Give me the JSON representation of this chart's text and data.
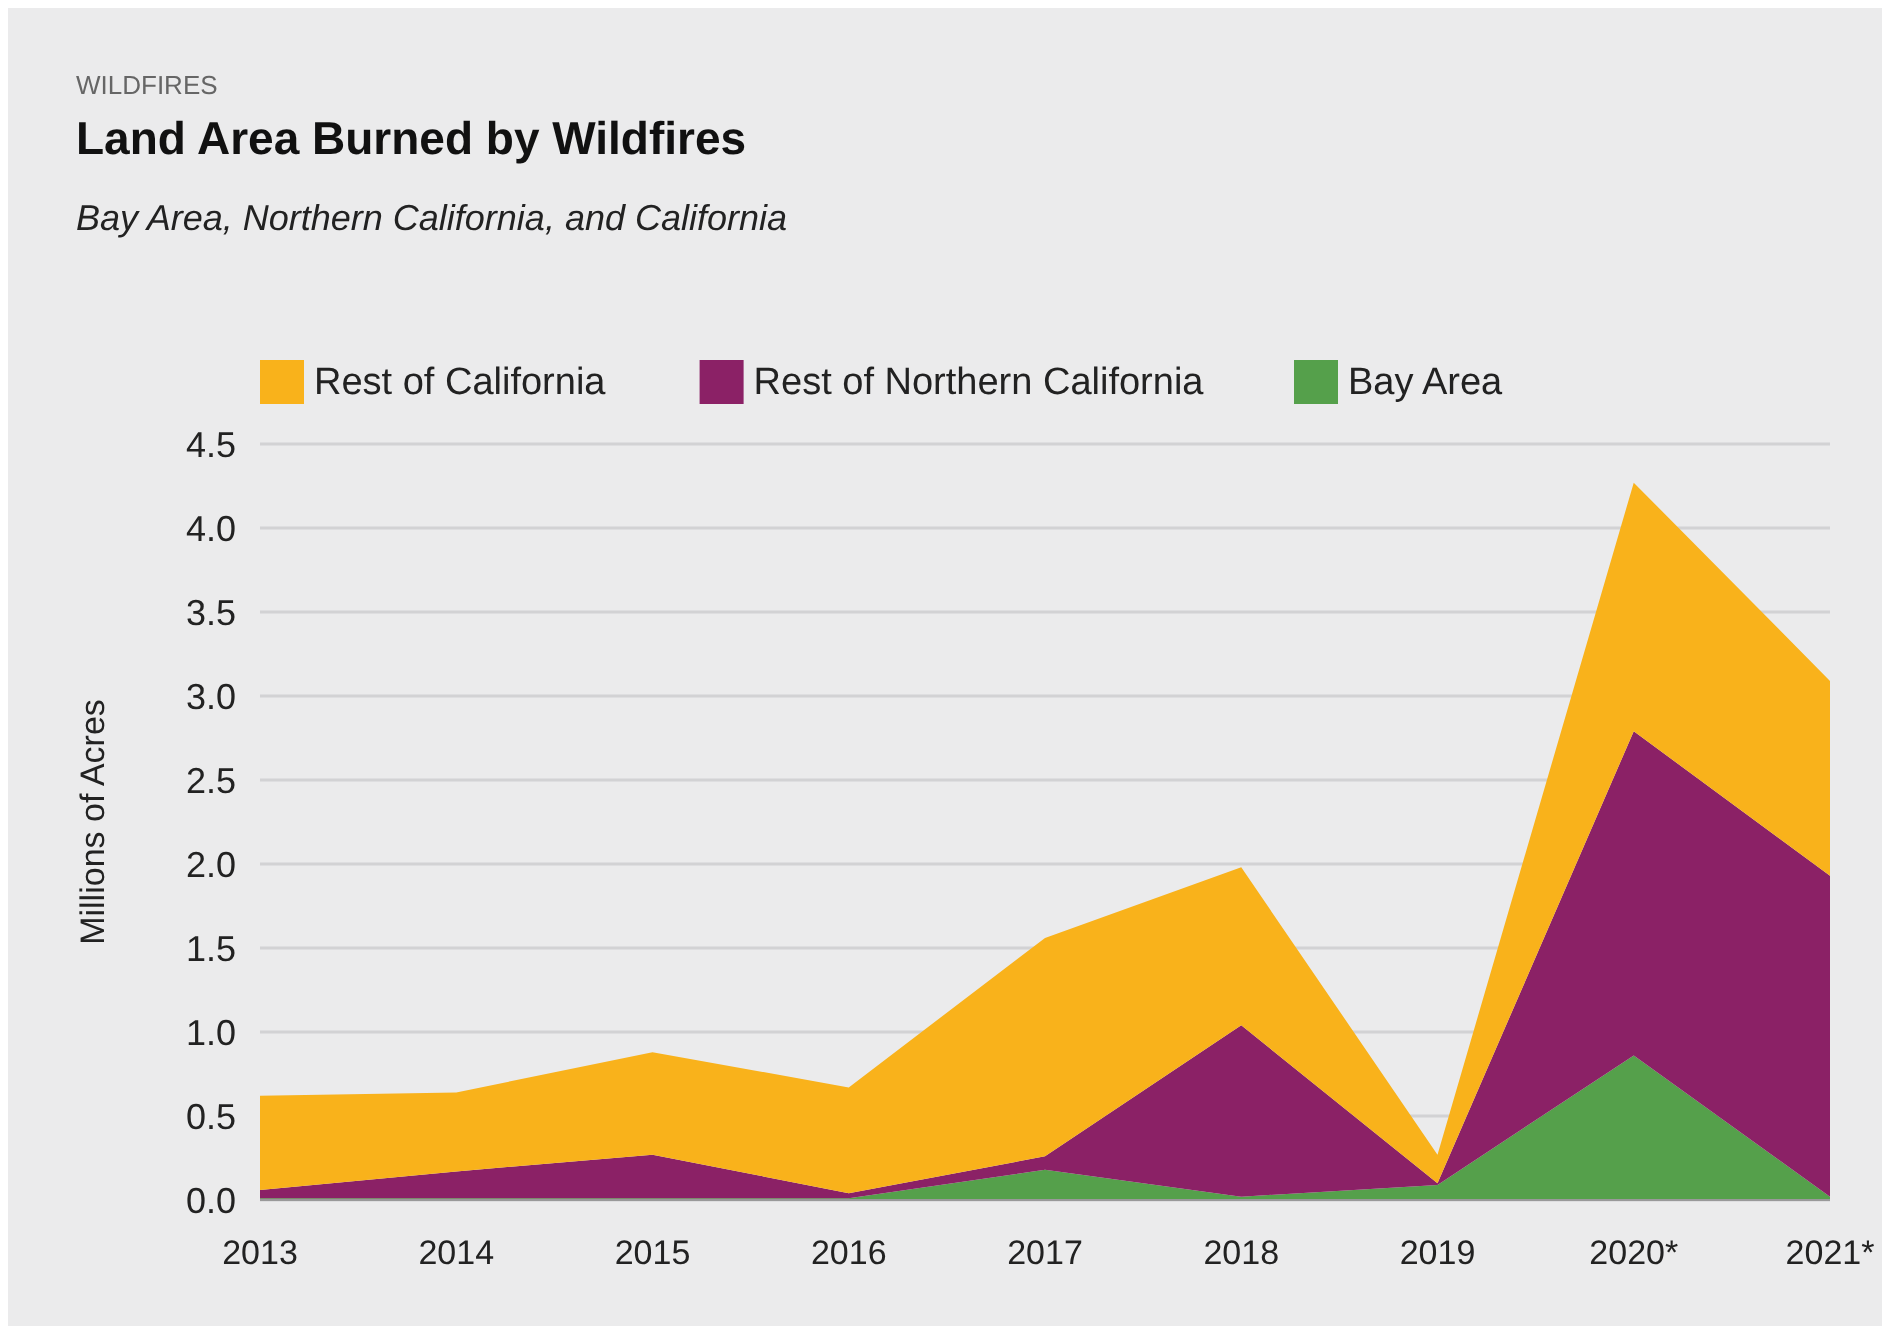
{
  "chart_data": {
    "type": "area",
    "title": "Land Area Burned by Wildfires",
    "subtitle": "Bay Area, Northern California, and California",
    "annotations": [
      "WILDFIRES"
    ],
    "ylabel": "Millions of Acres",
    "categories": [
      "2013",
      "2014",
      "2015",
      "2016",
      "2017",
      "2018",
      "2019",
      "2020*",
      "2021*"
    ],
    "stacked": true,
    "series": [
      {
        "name": "Bay Area",
        "color": "#55a04b",
        "values": [
          0.01,
          0.01,
          0.01,
          0.01,
          0.18,
          0.02,
          0.09,
          0.86,
          0.02
        ]
      },
      {
        "name": "Rest of Northern California",
        "color": "#8b2166",
        "values": [
          0.05,
          0.16,
          0.26,
          0.03,
          0.08,
          1.02,
          0.01,
          1.93,
          1.91
        ]
      },
      {
        "name": "Rest of California",
        "color": "#f9b21b",
        "values": [
          0.56,
          0.47,
          0.61,
          0.63,
          1.3,
          0.94,
          0.17,
          1.48,
          1.16
        ]
      }
    ],
    "ylim": [
      0,
      4.5
    ],
    "yticks": [
      {
        "value": 0,
        "label": "0.0"
      },
      {
        "value": 0.5,
        "label": "0.5"
      },
      {
        "value": 1,
        "label": "1.0"
      },
      {
        "value": 1.5,
        "label": "1.5"
      },
      {
        "value": 2,
        "label": "2.0"
      },
      {
        "value": 2.5,
        "label": "2.5"
      },
      {
        "value": 3,
        "label": "3.0"
      },
      {
        "value": 3.5,
        "label": "3.5"
      },
      {
        "value": 4,
        "label": "4.0"
      },
      {
        "value": 4.5,
        "label": "4.5"
      }
    ],
    "grid": "y",
    "legend": "top left"
  }
}
